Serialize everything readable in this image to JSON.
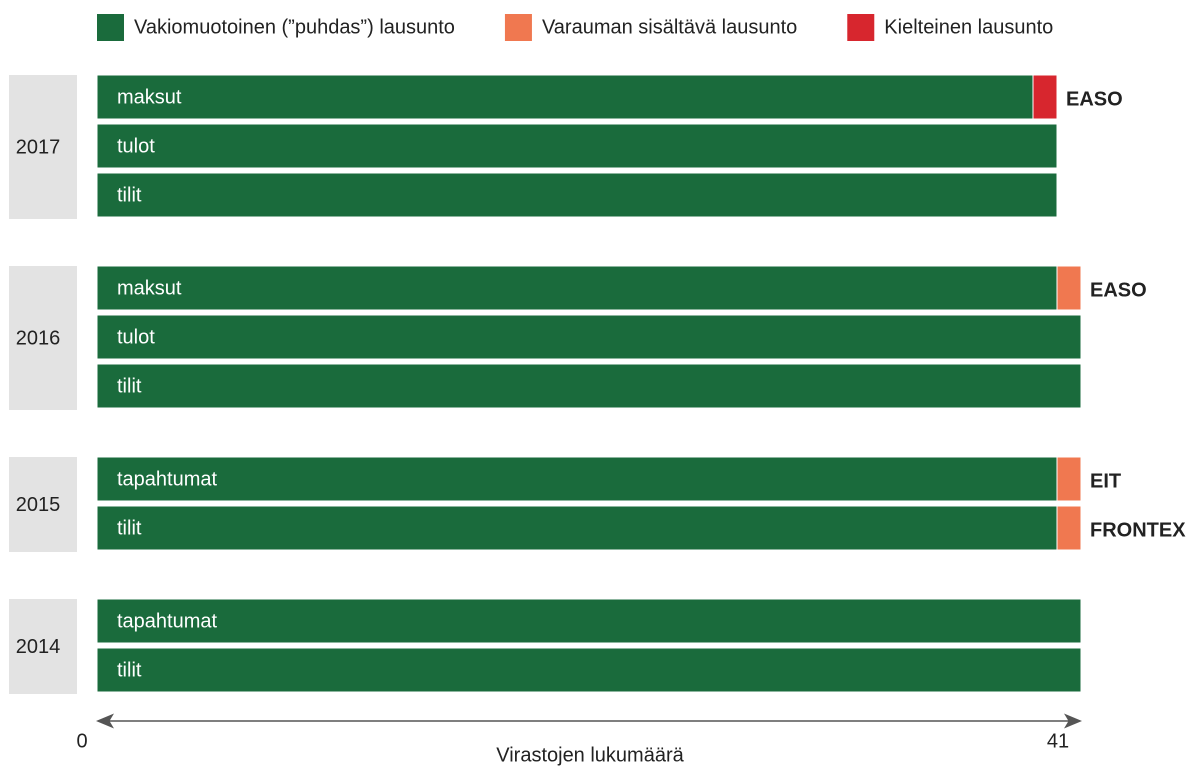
{
  "chart_data": {
    "type": "bar",
    "orientation": "horizontal",
    "stacked": true,
    "series": [
      {
        "name": "Vakiomuotoinen (”puhdas”) lausunto",
        "color": "#1a6b3c"
      },
      {
        "name": "Varauman sisältävä lausunto",
        "color": "#f07850"
      },
      {
        "name": "Kielteinen lausunto",
        "color": "#d7262e"
      }
    ],
    "groups": [
      {
        "label": "2017",
        "rows": [
          {
            "label": "maksut",
            "values": [
              39,
              null,
              1
            ],
            "annotation": "EASO"
          },
          {
            "label": "tulot",
            "values": [
              40,
              null,
              null
            ]
          },
          {
            "label": "tilit",
            "values": [
              40,
              null,
              null
            ]
          }
        ]
      },
      {
        "label": "2016",
        "rows": [
          {
            "label": "maksut",
            "values": [
              40,
              1,
              null
            ],
            "annotation": "EASO"
          },
          {
            "label": "tulot",
            "values": [
              41,
              null,
              null
            ]
          },
          {
            "label": "tilit",
            "values": [
              41,
              null,
              null
            ]
          }
        ]
      },
      {
        "label": "2015",
        "rows": [
          {
            "label": "tapahtumat",
            "values": [
              40,
              1,
              null
            ],
            "annotation": "EIT"
          },
          {
            "label": "tilit",
            "values": [
              40,
              1,
              null
            ],
            "annotation": "FRONTEX"
          }
        ]
      },
      {
        "label": "2014",
        "rows": [
          {
            "label": "tapahtumat",
            "values": [
              41,
              null,
              null
            ]
          },
          {
            "label": "tilit",
            "values": [
              41,
              null,
              null
            ]
          }
        ]
      }
    ],
    "xlim": [
      0,
      41
    ],
    "xticks": [
      0,
      41
    ],
    "xlabel": "Virastojen lukumäärä"
  }
}
